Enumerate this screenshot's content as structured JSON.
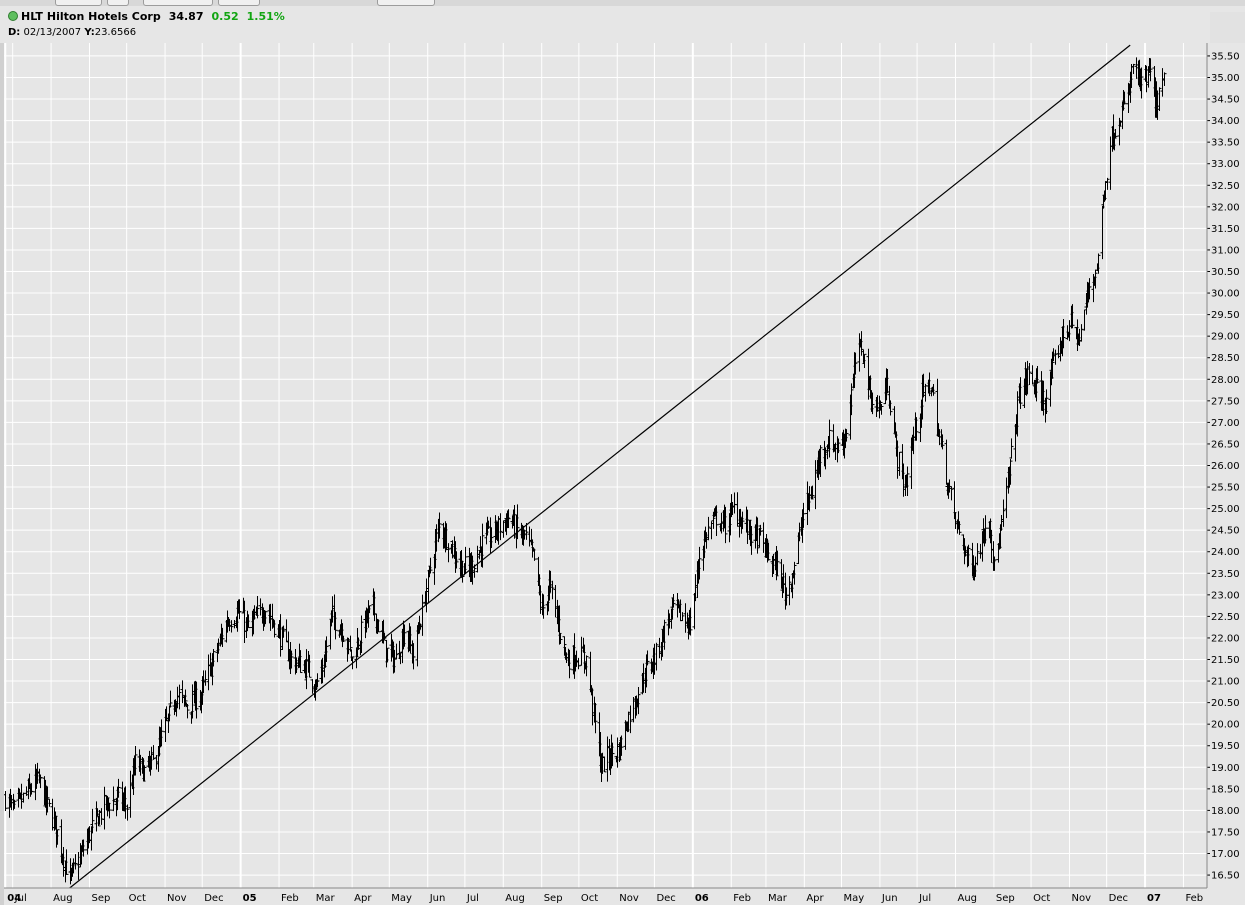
{
  "header": {
    "symbol": "HLT",
    "company": "Hilton Hotels Corp",
    "last": "34.87",
    "change": "0.52",
    "change_pct": "1.51%",
    "change_color": "#12a512"
  },
  "cursor": {
    "d_label": "D:",
    "date": "02/13/2007",
    "y_label": "Y:",
    "y_value": "23.6566"
  },
  "chart_data": {
    "type": "ohlc",
    "title": "HLT Hilton Hotels Corp",
    "bar_color": "#000000",
    "background": "#e6e6e6",
    "grid": true,
    "grid_color": "#ffffff",
    "y_axis_position": "right",
    "ylim": [
      16.2,
      35.8
    ],
    "xlim": [
      "2004-06-24",
      "2007-02-20"
    ],
    "y_ticks": [
      "16.50",
      "17.00",
      "17.50",
      "18.00",
      "18.50",
      "19.00",
      "19.50",
      "20.00",
      "20.50",
      "21.00",
      "21.50",
      "22.00",
      "22.50",
      "23.00",
      "23.50",
      "24.00",
      "24.50",
      "25.00",
      "25.50",
      "26.00",
      "26.50",
      "27.00",
      "27.50",
      "28.00",
      "28.50",
      "29.00",
      "29.50",
      "30.00",
      "30.50",
      "31.00",
      "31.50",
      "32.00",
      "32.50",
      "33.00",
      "33.50",
      "34.00",
      "34.50",
      "35.00",
      "35.50"
    ],
    "x_ticks": [
      {
        "label": "04",
        "date": "2004-06-25",
        "bold": true
      },
      {
        "label": "Jul",
        "date": "2004-07-01"
      },
      {
        "label": "Aug",
        "date": "2004-08-01"
      },
      {
        "label": "Sep",
        "date": "2004-09-01"
      },
      {
        "label": "Oct",
        "date": "2004-10-01"
      },
      {
        "label": "Nov",
        "date": "2004-11-01"
      },
      {
        "label": "Dec",
        "date": "2004-12-01"
      },
      {
        "label": "05",
        "date": "2005-01-01",
        "bold": true
      },
      {
        "label": "Feb",
        "date": "2005-02-01"
      },
      {
        "label": "Mar",
        "date": "2005-03-01"
      },
      {
        "label": "Apr",
        "date": "2005-04-01"
      },
      {
        "label": "May",
        "date": "2005-05-01"
      },
      {
        "label": "Jun",
        "date": "2005-06-01"
      },
      {
        "label": "Jul",
        "date": "2005-07-01"
      },
      {
        "label": "Aug",
        "date": "2005-08-01"
      },
      {
        "label": "Sep",
        "date": "2005-09-01"
      },
      {
        "label": "Oct",
        "date": "2005-10-01"
      },
      {
        "label": "Nov",
        "date": "2005-11-01"
      },
      {
        "label": "Dec",
        "date": "2005-12-01"
      },
      {
        "label": "06",
        "date": "2006-01-01",
        "bold": true
      },
      {
        "label": "Feb",
        "date": "2006-02-01"
      },
      {
        "label": "Mar",
        "date": "2006-03-01"
      },
      {
        "label": "Apr",
        "date": "2006-04-01"
      },
      {
        "label": "May",
        "date": "2006-05-01"
      },
      {
        "label": "Jun",
        "date": "2006-06-01"
      },
      {
        "label": "Jul",
        "date": "2006-07-01"
      },
      {
        "label": "Aug",
        "date": "2006-08-01"
      },
      {
        "label": "Sep",
        "date": "2006-09-01"
      },
      {
        "label": "Oct",
        "date": "2006-10-01"
      },
      {
        "label": "Nov",
        "date": "2006-11-01"
      },
      {
        "label": "Dec",
        "date": "2006-12-01"
      },
      {
        "label": "07",
        "date": "2007-01-01",
        "bold": true
      },
      {
        "label": "Feb",
        "date": "2007-02-01"
      }
    ],
    "close_path": [
      {
        "date": "2004-06-25",
        "close": 18.3
      },
      {
        "date": "2004-07-02",
        "close": 18.0
      },
      {
        "date": "2004-07-12",
        "close": 18.4
      },
      {
        "date": "2004-07-22",
        "close": 18.7
      },
      {
        "date": "2004-07-29",
        "close": 18.1
      },
      {
        "date": "2004-08-05",
        "close": 17.6
      },
      {
        "date": "2004-08-11",
        "close": 16.9
      },
      {
        "date": "2004-08-16",
        "close": 16.4
      },
      {
        "date": "2004-08-24",
        "close": 16.9
      },
      {
        "date": "2004-09-03",
        "close": 17.6
      },
      {
        "date": "2004-09-13",
        "close": 18.1
      },
      {
        "date": "2004-09-24",
        "close": 18.3
      },
      {
        "date": "2004-10-01",
        "close": 18.1
      },
      {
        "date": "2004-10-08",
        "close": 19.1
      },
      {
        "date": "2004-10-15",
        "close": 18.9
      },
      {
        "date": "2004-10-22",
        "close": 19.1
      },
      {
        "date": "2004-11-03",
        "close": 20.1
      },
      {
        "date": "2004-11-10",
        "close": 20.7
      },
      {
        "date": "2004-11-19",
        "close": 20.4
      },
      {
        "date": "2004-11-30",
        "close": 20.7
      },
      {
        "date": "2004-12-10",
        "close": 21.5
      },
      {
        "date": "2004-12-21",
        "close": 22.4
      },
      {
        "date": "2004-12-30",
        "close": 22.6
      },
      {
        "date": "2005-01-07",
        "close": 22.2
      },
      {
        "date": "2005-01-14",
        "close": 22.5
      },
      {
        "date": "2005-01-21",
        "close": 22.7
      },
      {
        "date": "2005-02-01",
        "close": 22.1
      },
      {
        "date": "2005-02-11",
        "close": 21.5
      },
      {
        "date": "2005-02-23",
        "close": 21.3
      },
      {
        "date": "2005-03-03",
        "close": 20.9
      },
      {
        "date": "2005-03-08",
        "close": 21.3
      },
      {
        "date": "2005-03-15",
        "close": 22.5
      },
      {
        "date": "2005-03-24",
        "close": 22.2
      },
      {
        "date": "2005-04-01",
        "close": 21.5
      },
      {
        "date": "2005-04-11",
        "close": 22.4
      },
      {
        "date": "2005-04-18",
        "close": 22.7
      },
      {
        "date": "2005-04-28",
        "close": 21.7
      },
      {
        "date": "2005-05-06",
        "close": 21.5
      },
      {
        "date": "2005-05-13",
        "close": 22.2
      },
      {
        "date": "2005-05-20",
        "close": 21.6
      },
      {
        "date": "2005-05-27",
        "close": 22.6
      },
      {
        "date": "2005-06-03",
        "close": 23.6
      },
      {
        "date": "2005-06-10",
        "close": 24.6
      },
      {
        "date": "2005-06-17",
        "close": 24.3
      },
      {
        "date": "2005-06-27",
        "close": 23.7
      },
      {
        "date": "2005-07-05",
        "close": 23.6
      },
      {
        "date": "2005-07-15",
        "close": 24.2
      },
      {
        "date": "2005-07-26",
        "close": 24.5
      },
      {
        "date": "2005-08-05",
        "close": 24.8
      },
      {
        "date": "2005-08-12",
        "close": 24.5
      },
      {
        "date": "2005-08-19",
        "close": 24.3
      },
      {
        "date": "2005-08-26",
        "close": 23.8
      },
      {
        "date": "2005-09-01",
        "close": 22.6
      },
      {
        "date": "2005-09-07",
        "close": 23.2
      },
      {
        "date": "2005-09-13",
        "close": 22.5
      },
      {
        "date": "2005-09-21",
        "close": 21.5
      },
      {
        "date": "2005-09-29",
        "close": 21.6
      },
      {
        "date": "2005-10-07",
        "close": 21.5
      },
      {
        "date": "2005-10-14",
        "close": 20.0
      },
      {
        "date": "2005-10-19",
        "close": 19.0
      },
      {
        "date": "2005-10-26",
        "close": 19.3
      },
      {
        "date": "2005-11-02",
        "close": 19.4
      },
      {
        "date": "2005-11-09",
        "close": 20.1
      },
      {
        "date": "2005-11-16",
        "close": 20.6
      },
      {
        "date": "2005-11-23",
        "close": 21.2
      },
      {
        "date": "2005-12-02",
        "close": 21.6
      },
      {
        "date": "2005-12-09",
        "close": 22.2
      },
      {
        "date": "2005-12-16",
        "close": 22.7
      },
      {
        "date": "2005-12-23",
        "close": 22.5
      },
      {
        "date": "2005-12-30",
        "close": 22.3
      },
      {
        "date": "2006-01-06",
        "close": 23.9
      },
      {
        "date": "2006-01-13",
        "close": 24.5
      },
      {
        "date": "2006-01-20",
        "close": 24.8
      },
      {
        "date": "2006-01-27",
        "close": 24.6
      },
      {
        "date": "2006-02-03",
        "close": 25.0
      },
      {
        "date": "2006-02-10",
        "close": 24.7
      },
      {
        "date": "2006-02-17",
        "close": 24.4
      },
      {
        "date": "2006-02-24",
        "close": 24.3
      },
      {
        "date": "2006-03-03",
        "close": 23.9
      },
      {
        "date": "2006-03-10",
        "close": 23.6
      },
      {
        "date": "2006-03-17",
        "close": 23.0
      },
      {
        "date": "2006-03-24",
        "close": 23.7
      },
      {
        "date": "2006-03-31",
        "close": 24.9
      },
      {
        "date": "2006-04-07",
        "close": 25.4
      },
      {
        "date": "2006-04-14",
        "close": 26.3
      },
      {
        "date": "2006-04-21",
        "close": 26.6
      },
      {
        "date": "2006-04-28",
        "close": 26.4
      },
      {
        "date": "2006-05-05",
        "close": 26.8
      },
      {
        "date": "2006-05-12",
        "close": 28.4
      },
      {
        "date": "2006-05-17",
        "close": 28.8
      },
      {
        "date": "2006-05-24",
        "close": 27.6
      },
      {
        "date": "2006-05-31",
        "close": 27.3
      },
      {
        "date": "2006-06-07",
        "close": 27.9
      },
      {
        "date": "2006-06-14",
        "close": 26.3
      },
      {
        "date": "2006-06-21",
        "close": 25.5
      },
      {
        "date": "2006-06-28",
        "close": 26.7
      },
      {
        "date": "2006-07-05",
        "close": 27.6
      },
      {
        "date": "2006-07-12",
        "close": 27.9
      },
      {
        "date": "2006-07-19",
        "close": 26.6
      },
      {
        "date": "2006-07-26",
        "close": 25.5
      },
      {
        "date": "2006-08-02",
        "close": 24.6
      },
      {
        "date": "2006-08-09",
        "close": 24.0
      },
      {
        "date": "2006-08-14",
        "close": 23.6
      },
      {
        "date": "2006-08-21",
        "close": 24.2
      },
      {
        "date": "2006-08-28",
        "close": 24.9
      },
      {
        "date": "2006-09-01",
        "close": 23.6
      },
      {
        "date": "2006-09-07",
        "close": 24.6
      },
      {
        "date": "2006-09-14",
        "close": 26.0
      },
      {
        "date": "2006-09-21",
        "close": 27.6
      },
      {
        "date": "2006-09-28",
        "close": 28.1
      },
      {
        "date": "2006-10-05",
        "close": 27.8
      },
      {
        "date": "2006-10-12",
        "close": 27.5
      },
      {
        "date": "2006-10-19",
        "close": 28.3
      },
      {
        "date": "2006-10-26",
        "close": 29.0
      },
      {
        "date": "2006-11-02",
        "close": 29.3
      },
      {
        "date": "2006-11-09",
        "close": 28.9
      },
      {
        "date": "2006-11-16",
        "close": 30.1
      },
      {
        "date": "2006-11-23",
        "close": 30.6
      },
      {
        "date": "2006-11-28",
        "close": 32.2
      },
      {
        "date": "2006-12-04",
        "close": 33.5
      },
      {
        "date": "2006-12-11",
        "close": 34.1
      },
      {
        "date": "2006-12-18",
        "close": 34.5
      },
      {
        "date": "2006-12-22",
        "close": 35.3
      },
      {
        "date": "2006-12-29",
        "close": 34.8
      },
      {
        "date": "2007-01-05",
        "close": 35.1
      },
      {
        "date": "2007-01-09",
        "close": 34.3
      },
      {
        "date": "2007-01-12",
        "close": 34.6
      },
      {
        "date": "2007-01-16",
        "close": 34.87
      }
    ],
    "trendline": {
      "start": {
        "date": "2004-08-16",
        "price": 16.2
      },
      "end": {
        "date": "2006-12-20",
        "price": 35.75
      }
    }
  }
}
